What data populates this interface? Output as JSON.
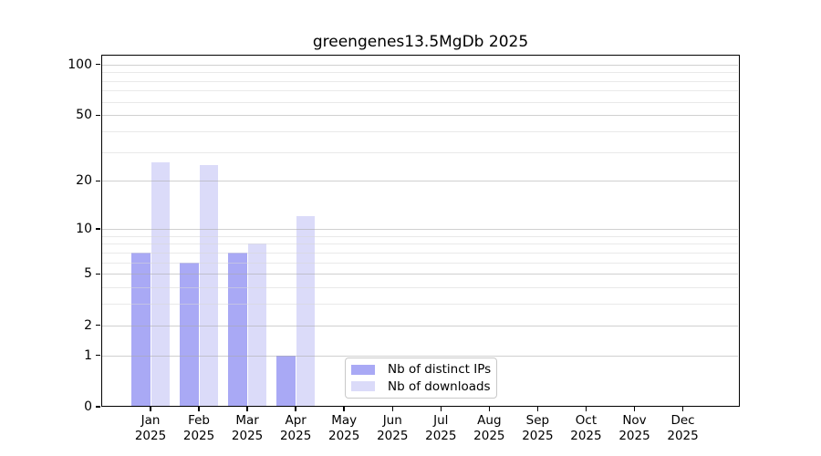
{
  "figure": {
    "title": "greengenes13.5MgDb 2025"
  },
  "y_axis": {
    "tick_labels": [
      "100",
      "50",
      "20",
      "10",
      "5",
      "2",
      "1",
      "0"
    ],
    "tick_values": [
      100,
      50,
      20,
      10,
      5,
      2,
      1,
      0
    ]
  },
  "x_axis": {
    "ticks": [
      {
        "month": "Jan",
        "year": "2025"
      },
      {
        "month": "Feb",
        "year": "2025"
      },
      {
        "month": "Mar",
        "year": "2025"
      },
      {
        "month": "Apr",
        "year": "2025"
      },
      {
        "month": "May",
        "year": "2025"
      },
      {
        "month": "Jun",
        "year": "2025"
      },
      {
        "month": "Jul",
        "year": "2025"
      },
      {
        "month": "Aug",
        "year": "2025"
      },
      {
        "month": "Sep",
        "year": "2025"
      },
      {
        "month": "Oct",
        "year": "2025"
      },
      {
        "month": "Nov",
        "year": "2025"
      },
      {
        "month": "Dec",
        "year": "2025"
      }
    ]
  },
  "legend": {
    "items": [
      {
        "label": "Nb of distinct IPs",
        "series": "ips"
      },
      {
        "label": "Nb of downloads",
        "series": "downloads"
      }
    ]
  },
  "colors": {
    "ips": "#a9a9f5",
    "downloads": "#dbdbf9",
    "grid_major": "#aaaaaa",
    "grid_minor": "#d7d7d7",
    "axis": "#000000"
  },
  "chart_data": {
    "type": "bar",
    "title": "greengenes13.5MgDb 2025",
    "categories": [
      "Jan 2025",
      "Feb 2025",
      "Mar 2025",
      "Apr 2025",
      "May 2025",
      "Jun 2025",
      "Jul 2025",
      "Aug 2025",
      "Sep 2025",
      "Oct 2025",
      "Nov 2025",
      "Dec 2025"
    ],
    "series": [
      {
        "name": "Nb of distinct IPs",
        "color": "#a9a9f5",
        "values": [
          7,
          6,
          7,
          1,
          null,
          null,
          null,
          null,
          null,
          null,
          null,
          null
        ]
      },
      {
        "name": "Nb of downloads",
        "color": "#dbdbf9",
        "values": [
          26,
          25,
          8,
          12,
          null,
          null,
          null,
          null,
          null,
          null,
          null,
          null
        ]
      }
    ],
    "xlabel": "",
    "ylabel": "",
    "yscale": "log1p",
    "ylim": [
      0,
      115
    ],
    "y_major_ticks": [
      0,
      1,
      2,
      5,
      10,
      20,
      50,
      100
    ],
    "y_minor_gridlines": [
      3,
      4,
      6,
      7,
      8,
      9,
      30,
      40,
      60,
      70,
      80,
      90
    ],
    "grid": "horizontal, drawn above bars",
    "legend_position": "lower center"
  }
}
